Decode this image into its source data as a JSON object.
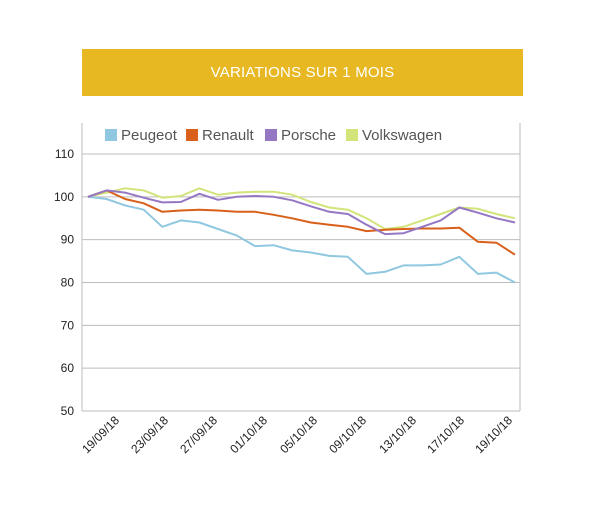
{
  "header": {
    "title": "VARIATIONS SUR 1 MOIS"
  },
  "colors": {
    "banner": "#E8B823",
    "peugeot": "#8FC8E0",
    "renault": "#D9601A",
    "porsche": "#9577C4",
    "volkswagen": "#D2E47A",
    "grid": "#BDBDBD"
  },
  "chart_data": {
    "type": "line",
    "title": "VARIATIONS SUR 1 MOIS",
    "xlabel": "",
    "ylabel": "",
    "ylim": [
      50,
      110
    ],
    "yticks": [
      50,
      60,
      70,
      80,
      90,
      100,
      110
    ],
    "grid": true,
    "legend": "top",
    "x": [
      "19/09/18",
      "20/09/18",
      "21/09/18",
      "24/09/18",
      "25/09/18",
      "26/09/18",
      "27/09/18",
      "28/09/18",
      "01/10/18",
      "02/10/18",
      "03/10/18",
      "04/10/18",
      "05/10/18",
      "08/10/18",
      "09/10/18",
      "10/10/18",
      "11/10/18",
      "12/10/18",
      "15/10/18",
      "16/10/18",
      "17/10/18",
      "18/10/18",
      "19/10/18",
      "22/10/18"
    ],
    "xtick_labels": [
      "19/09/18",
      "23/09/18",
      "27/09/18",
      "01/10/18",
      "05/10/18",
      "09/10/18",
      "13/10/18",
      "17/10/18",
      "19/10/18"
    ],
    "series": [
      {
        "name": "Peugeot",
        "color": "#8FC8E0",
        "values": [
          100,
          99.5,
          98,
          97,
          93,
          94.5,
          94,
          92.5,
          91,
          88.5,
          88.7,
          87.5,
          87,
          86.2,
          86,
          82,
          82.5,
          84,
          84,
          84.2,
          86,
          82,
          82.3,
          80
        ]
      },
      {
        "name": "Renault",
        "color": "#D9601A",
        "values": [
          100,
          101.5,
          99.5,
          98.5,
          96.5,
          96.8,
          97,
          96.8,
          96.5,
          96.5,
          95.8,
          95,
          94,
          93.5,
          93,
          92,
          92.3,
          92.5,
          92.6,
          92.6,
          92.8,
          89.5,
          89.3,
          86.5
        ]
      },
      {
        "name": "Porsche",
        "color": "#9577C4",
        "values": [
          100,
          101.5,
          101,
          99.8,
          98.7,
          98.8,
          100.7,
          99.3,
          100,
          100.2,
          100,
          99.2,
          97.8,
          96.5,
          96,
          93.5,
          91.3,
          91.5,
          93,
          94.5,
          97.5,
          96.3,
          95,
          94
        ]
      },
      {
        "name": "Volkswagen",
        "color": "#D2E47A",
        "values": [
          100,
          101,
          102,
          101.5,
          99.8,
          100.2,
          102,
          100.5,
          101,
          101.2,
          101.2,
          100.5,
          98.8,
          97.5,
          97,
          95,
          92.5,
          93,
          94.5,
          96,
          97.5,
          97.2,
          96,
          95
        ]
      }
    ]
  }
}
